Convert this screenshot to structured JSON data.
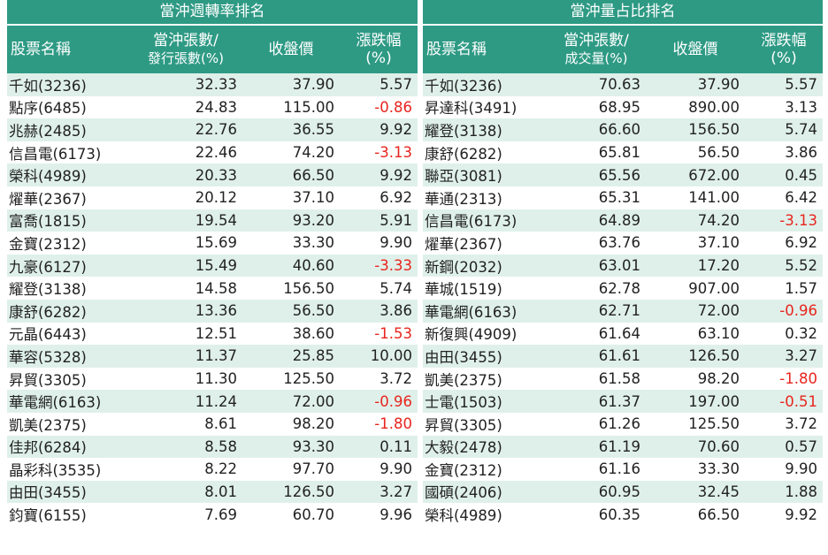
{
  "colors": {
    "header_bg": "#2e9a84",
    "stripe": "#dff0ea",
    "negative": "#e8251e"
  },
  "left": {
    "title": "當沖週轉率排名",
    "headers": {
      "name": "股票名稱",
      "ratio_line1": "當沖張數/",
      "ratio_line2": "發行張數(%)",
      "close": "收盤價",
      "change": "漲跌幅(%)"
    },
    "rows": [
      {
        "name": "千如(3236)",
        "ratio": "32.33",
        "close": "37.90",
        "change": "5.57"
      },
      {
        "name": "點序(6485)",
        "ratio": "24.83",
        "close": "115.00",
        "change": "-0.86"
      },
      {
        "name": "兆赫(2485)",
        "ratio": "22.76",
        "close": "36.55",
        "change": "9.92"
      },
      {
        "name": "信昌電(6173)",
        "ratio": "22.46",
        "close": "74.20",
        "change": "-3.13"
      },
      {
        "name": "榮科(4989)",
        "ratio": "20.33",
        "close": "66.50",
        "change": "9.92"
      },
      {
        "name": "燿華(2367)",
        "ratio": "20.12",
        "close": "37.10",
        "change": "6.92"
      },
      {
        "name": "富喬(1815)",
        "ratio": "19.54",
        "close": "93.20",
        "change": "5.91"
      },
      {
        "name": "金寶(2312)",
        "ratio": "15.69",
        "close": "33.30",
        "change": "9.90"
      },
      {
        "name": "九豪(6127)",
        "ratio": "15.49",
        "close": "40.60",
        "change": "-3.33"
      },
      {
        "name": "耀登(3138)",
        "ratio": "14.58",
        "close": "156.50",
        "change": "5.74"
      },
      {
        "name": "康舒(6282)",
        "ratio": "13.36",
        "close": "56.50",
        "change": "3.86"
      },
      {
        "name": "元晶(6443)",
        "ratio": "12.51",
        "close": "38.60",
        "change": "-1.53"
      },
      {
        "name": "華容(5328)",
        "ratio": "11.37",
        "close": "25.85",
        "change": "10.00"
      },
      {
        "name": "昇貿(3305)",
        "ratio": "11.30",
        "close": "125.50",
        "change": "3.72"
      },
      {
        "name": "華電網(6163)",
        "ratio": "11.24",
        "close": "72.00",
        "change": "-0.96"
      },
      {
        "name": "凱美(2375)",
        "ratio": "8.61",
        "close": "98.20",
        "change": "-1.80"
      },
      {
        "name": "佳邦(6284)",
        "ratio": "8.58",
        "close": "93.30",
        "change": "0.11"
      },
      {
        "name": "晶彩科(3535)",
        "ratio": "8.22",
        "close": "97.70",
        "change": "9.90"
      },
      {
        "name": "由田(3455)",
        "ratio": "8.01",
        "close": "126.50",
        "change": "3.27"
      },
      {
        "name": "鈞寶(6155)",
        "ratio": "7.69",
        "close": "60.70",
        "change": "9.96"
      }
    ]
  },
  "right": {
    "title": "當沖量占比排名",
    "headers": {
      "name": "股票名稱",
      "ratio_line1": "當沖張數/",
      "ratio_line2": "成交量(%)",
      "close": "收盤價",
      "change": "漲跌幅(%)"
    },
    "rows": [
      {
        "name": "千如(3236)",
        "ratio": "70.63",
        "close": "37.90",
        "change": "5.57"
      },
      {
        "name": "昇達科(3491)",
        "ratio": "68.95",
        "close": "890.00",
        "change": "3.13"
      },
      {
        "name": "耀登(3138)",
        "ratio": "66.60",
        "close": "156.50",
        "change": "5.74"
      },
      {
        "name": "康舒(6282)",
        "ratio": "65.81",
        "close": "56.50",
        "change": "3.86"
      },
      {
        "name": "聯亞(3081)",
        "ratio": "65.56",
        "close": "672.00",
        "change": "0.45"
      },
      {
        "name": "華通(2313)",
        "ratio": "65.31",
        "close": "141.00",
        "change": "6.42"
      },
      {
        "name": "信昌電(6173)",
        "ratio": "64.89",
        "close": "74.20",
        "change": "-3.13"
      },
      {
        "name": "燿華(2367)",
        "ratio": "63.76",
        "close": "37.10",
        "change": "6.92"
      },
      {
        "name": "新鋼(2032)",
        "ratio": "63.01",
        "close": "17.20",
        "change": "5.52"
      },
      {
        "name": "華城(1519)",
        "ratio": "62.78",
        "close": "907.00",
        "change": "1.57"
      },
      {
        "name": "華電網(6163)",
        "ratio": "62.71",
        "close": "72.00",
        "change": "-0.96"
      },
      {
        "name": "新復興(4909)",
        "ratio": "61.64",
        "close": "63.10",
        "change": "0.32"
      },
      {
        "name": "由田(3455)",
        "ratio": "61.61",
        "close": "126.50",
        "change": "3.27"
      },
      {
        "name": "凱美(2375)",
        "ratio": "61.58",
        "close": "98.20",
        "change": "-1.80"
      },
      {
        "name": "士電(1503)",
        "ratio": "61.37",
        "close": "197.00",
        "change": "-0.51"
      },
      {
        "name": "昇貿(3305)",
        "ratio": "61.26",
        "close": "125.50",
        "change": "3.72"
      },
      {
        "name": "大毅(2478)",
        "ratio": "61.19",
        "close": "70.60",
        "change": "0.57"
      },
      {
        "name": "金寶(2312)",
        "ratio": "61.16",
        "close": "33.30",
        "change": "9.90"
      },
      {
        "name": "國碩(2406)",
        "ratio": "60.95",
        "close": "32.45",
        "change": "1.88"
      },
      {
        "name": "榮科(4989)",
        "ratio": "60.35",
        "close": "66.50",
        "change": "9.92"
      }
    ]
  }
}
